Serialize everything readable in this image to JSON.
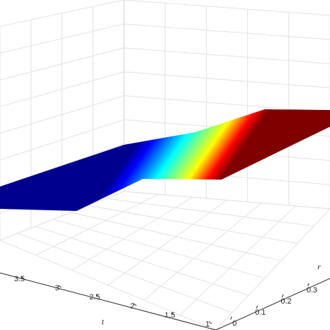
{
  "chart_data": {
    "type": "surface",
    "title": "",
    "axes": {
      "t": {
        "label": "t",
        "ticks": [
          1,
          1.5,
          2,
          2.5,
          3,
          3.5
        ],
        "tick_labels": [
          "1",
          "1.5",
          "2",
          "2.5",
          "3",
          "3.5"
        ]
      },
      "r": {
        "label": "r",
        "ticks": [
          0,
          0.1,
          0.2,
          0.3
        ],
        "tick_labels": [
          "0",
          "0.1",
          "0.2",
          "0.3"
        ]
      }
    },
    "grid": true,
    "colormap": "jet",
    "colormap_stops": [
      "#00008f",
      "#0000ff",
      "#00ffff",
      "#80ff80",
      "#ffff00",
      "#ff0000",
      "#800000"
    ]
  }
}
